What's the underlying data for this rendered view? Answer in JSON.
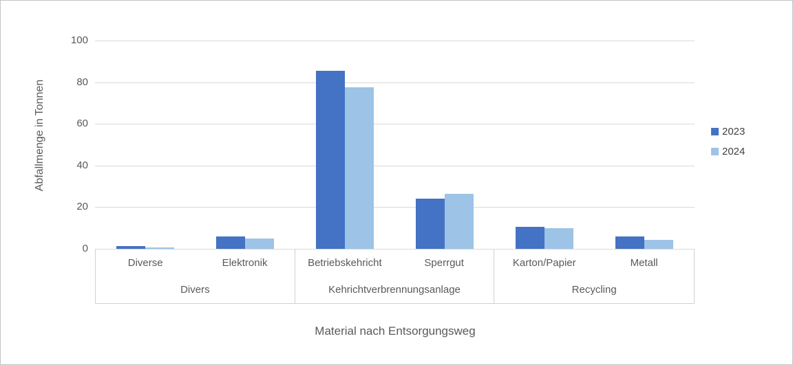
{
  "chart_data": {
    "type": "bar",
    "title": "",
    "xlabel": "Material nach Entsorgungsweg",
    "ylabel": "Abfallmenge in Tonnen",
    "ylim": [
      0,
      100
    ],
    "yticks": [
      0,
      20,
      40,
      60,
      80,
      100
    ],
    "grid": true,
    "legend_position": "right",
    "categories": [
      "Diverse",
      "Elektronik",
      "Betriebskehricht",
      "Sperrgut",
      "Karton/Papier",
      "Metall"
    ],
    "groups": [
      {
        "label": "Divers",
        "categories": [
          "Diverse",
          "Elektronik"
        ]
      },
      {
        "label": "Kehrichtverbrennungsanlage",
        "categories": [
          "Betriebskehricht",
          "Sperrgut"
        ]
      },
      {
        "label": "Recycling",
        "categories": [
          "Karton/Papier",
          "Metall"
        ]
      }
    ],
    "series": [
      {
        "name": "2023",
        "color": "#4472c4",
        "values": [
          1.2,
          6,
          85.5,
          24,
          10.5,
          6
        ]
      },
      {
        "name": "2024",
        "color": "#9dc3e6",
        "values": [
          0.7,
          5,
          77.5,
          26.5,
          10,
          4.2
        ]
      }
    ]
  },
  "colors": {
    "gridline": "#d9d9d9",
    "axis_text": "#595959",
    "legend_text": "#404040",
    "frame_border": "#c4c4c4"
  }
}
